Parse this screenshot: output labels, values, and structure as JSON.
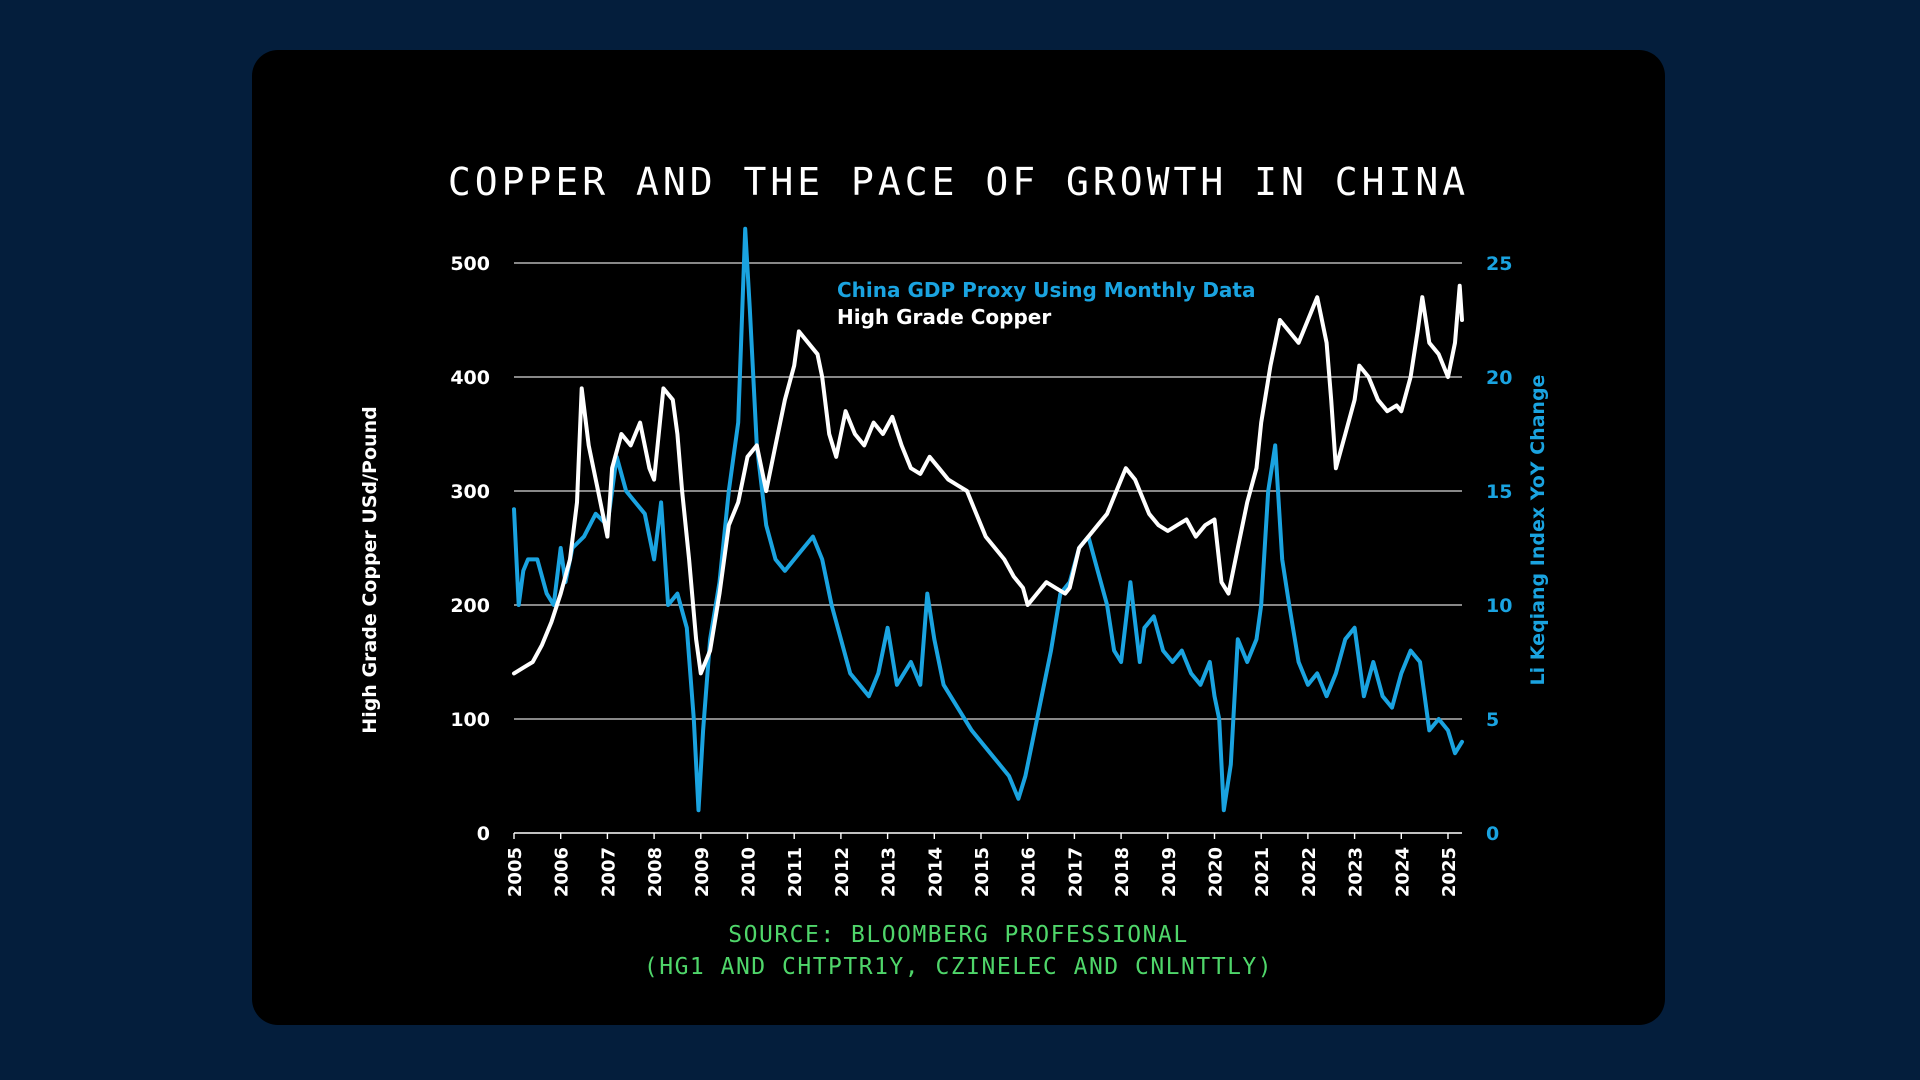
{
  "title": "COPPER AND THE PACE OF GROWTH IN CHINA",
  "source_line1": "SOURCE: BLOOMBERG PROFESSIONAL",
  "source_line2": "(HG1 AND CHTPTR1Y, CZINELEC AND CNLNTTLY)",
  "colors": {
    "page_background": "#041e3c",
    "card_background": "#000000",
    "copper": "#ffffff",
    "gdp_proxy": "#1aa3e0",
    "source_text": "#4fd66a",
    "gridline": "#ffffff"
  },
  "chart_data": {
    "type": "line",
    "title": "COPPER AND THE PACE OF GROWTH IN CHINA",
    "ylabel_left": "High Grade Copper USd/Pound",
    "ylabel_right": "Li Keqiang Index YoY Change",
    "ylim_left": [
      0,
      500
    ],
    "ylim_right": [
      0,
      25
    ],
    "yticks_left": [
      0,
      100,
      200,
      300,
      400,
      500
    ],
    "yticks_right": [
      0,
      5,
      10,
      15,
      20,
      25
    ],
    "xlim": [
      2005,
      2025.3
    ],
    "xticks": [
      2005,
      2006,
      2007,
      2008,
      2009,
      2010,
      2011,
      2012,
      2013,
      2014,
      2015,
      2016,
      2017,
      2018,
      2019,
      2020,
      2021,
      2022,
      2023,
      2024,
      2025
    ],
    "grid": "horizontal",
    "legend_position": "top-center",
    "series": [
      {
        "name": "China GDP Proxy Using Monthly Data",
        "axis": "right",
        "color": "#1aa3e0",
        "x": [
          2005.0,
          2005.1,
          2005.2,
          2005.3,
          2005.5,
          2005.7,
          2005.85,
          2006.0,
          2006.1,
          2006.25,
          2006.5,
          2006.75,
          2007.0,
          2007.2,
          2007.4,
          2007.6,
          2007.8,
          2008.0,
          2008.15,
          2008.3,
          2008.5,
          2008.7,
          2008.85,
          2008.95,
          2009.05,
          2009.2,
          2009.4,
          2009.6,
          2009.8,
          2009.95,
          2010.05,
          2010.2,
          2010.4,
          2010.6,
          2010.8,
          2011.0,
          2011.2,
          2011.4,
          2011.6,
          2011.8,
          2012.0,
          2012.2,
          2012.4,
          2012.6,
          2012.8,
          2013.0,
          2013.2,
          2013.5,
          2013.7,
          2013.85,
          2014.0,
          2014.2,
          2014.5,
          2014.8,
          2015.0,
          2015.2,
          2015.4,
          2015.6,
          2015.8,
          2015.95,
          2016.1,
          2016.3,
          2016.5,
          2016.7,
          2016.9,
          2017.1,
          2017.3,
          2017.5,
          2017.7,
          2017.85,
          2018.0,
          2018.2,
          2018.4,
          2018.5,
          2018.7,
          2018.9,
          2019.1,
          2019.3,
          2019.5,
          2019.7,
          2019.9,
          2020.0,
          2020.1,
          2020.2,
          2020.35,
          2020.5,
          2020.7,
          2020.9,
          2021.0,
          2021.15,
          2021.3,
          2021.45,
          2021.6,
          2021.8,
          2022.0,
          2022.2,
          2022.4,
          2022.6,
          2022.8,
          2023.0,
          2023.2,
          2023.4,
          2023.6,
          2023.8,
          2024.0,
          2024.2,
          2024.4,
          2024.6,
          2024.8,
          2025.0,
          2025.15,
          2025.3
        ],
        "values": [
          14.2,
          10.0,
          11.5,
          12.0,
          12.0,
          10.5,
          10.0,
          12.5,
          11.0,
          12.5,
          13.0,
          14.0,
          13.5,
          16.5,
          15.0,
          14.5,
          14.0,
          12.0,
          14.5,
          10.0,
          10.5,
          9.0,
          5.0,
          1.0,
          4.5,
          8.5,
          11.0,
          15.0,
          18.0,
          26.5,
          23.0,
          17.0,
          13.5,
          12.0,
          11.5,
          12.0,
          12.5,
          13.0,
          12.0,
          10.0,
          8.5,
          7.0,
          6.5,
          6.0,
          7.0,
          9.0,
          6.5,
          7.5,
          6.5,
          10.5,
          8.5,
          6.5,
          5.5,
          4.5,
          4.0,
          3.5,
          3.0,
          2.5,
          1.5,
          2.5,
          4.0,
          6.0,
          8.0,
          10.5,
          11.0,
          12.5,
          13.0,
          11.5,
          10.0,
          8.0,
          7.5,
          11.0,
          7.5,
          9.0,
          9.5,
          8.0,
          7.5,
          8.0,
          7.0,
          6.5,
          7.5,
          6.0,
          5.0,
          1.0,
          3.0,
          8.5,
          7.5,
          8.5,
          10.0,
          15.0,
          17.0,
          12.0,
          10.0,
          7.5,
          6.5,
          7.0,
          6.0,
          7.0,
          8.5,
          9.0,
          6.0,
          7.5,
          6.0,
          5.5,
          7.0,
          8.0,
          7.5,
          4.5,
          5.0,
          4.5,
          3.5,
          4.0
        ]
      },
      {
        "name": "High Grade Copper",
        "axis": "left",
        "color": "#ffffff",
        "x": [
          2005.0,
          2005.2,
          2005.4,
          2005.6,
          2005.8,
          2006.0,
          2006.2,
          2006.35,
          2006.45,
          2006.6,
          2006.8,
          2007.0,
          2007.1,
          2007.3,
          2007.5,
          2007.7,
          2007.9,
          2008.0,
          2008.2,
          2008.4,
          2008.5,
          2008.6,
          2008.75,
          2008.9,
          2009.0,
          2009.2,
          2009.4,
          2009.6,
          2009.8,
          2010.0,
          2010.2,
          2010.4,
          2010.6,
          2010.8,
          2011.0,
          2011.1,
          2011.3,
          2011.5,
          2011.6,
          2011.75,
          2011.9,
          2012.1,
          2012.3,
          2012.5,
          2012.7,
          2012.9,
          2013.1,
          2013.3,
          2013.5,
          2013.7,
          2013.9,
          2014.1,
          2014.3,
          2014.5,
          2014.7,
          2014.9,
          2015.1,
          2015.3,
          2015.5,
          2015.7,
          2015.9,
          2016.0,
          2016.2,
          2016.4,
          2016.6,
          2016.8,
          2016.9,
          2017.1,
          2017.3,
          2017.5,
          2017.7,
          2017.9,
          2018.1,
          2018.3,
          2018.5,
          2018.6,
          2018.8,
          2019.0,
          2019.2,
          2019.4,
          2019.6,
          2019.8,
          2020.0,
          2020.15,
          2020.3,
          2020.5,
          2020.7,
          2020.9,
          2021.0,
          2021.2,
          2021.4,
          2021.6,
          2021.8,
          2022.0,
          2022.2,
          2022.4,
          2022.5,
          2022.6,
          2022.8,
          2023.0,
          2023.1,
          2023.3,
          2023.5,
          2023.7,
          2023.9,
          2024.0,
          2024.2,
          2024.35,
          2024.45,
          2024.6,
          2024.8,
          2025.0,
          2025.15,
          2025.25,
          2025.3
        ],
        "values": [
          140,
          145,
          150,
          165,
          185,
          210,
          240,
          290,
          390,
          340,
          300,
          260,
          320,
          350,
          340,
          360,
          320,
          310,
          390,
          380,
          350,
          300,
          240,
          170,
          140,
          160,
          210,
          270,
          290,
          330,
          340,
          300,
          340,
          380,
          410,
          440,
          430,
          420,
          400,
          350,
          330,
          370,
          350,
          340,
          360,
          350,
          365,
          340,
          320,
          315,
          330,
          320,
          310,
          305,
          300,
          280,
          260,
          250,
          240,
          225,
          215,
          200,
          210,
          220,
          215,
          210,
          215,
          250,
          260,
          270,
          280,
          300,
          320,
          310,
          290,
          280,
          270,
          265,
          270,
          275,
          260,
          270,
          275,
          220,
          210,
          250,
          290,
          320,
          360,
          410,
          450,
          440,
          430,
          450,
          470,
          430,
          380,
          320,
          350,
          380,
          410,
          400,
          380,
          370,
          375,
          370,
          400,
          440,
          470,
          430,
          420,
          400,
          430,
          480,
          450
        ]
      }
    ]
  }
}
